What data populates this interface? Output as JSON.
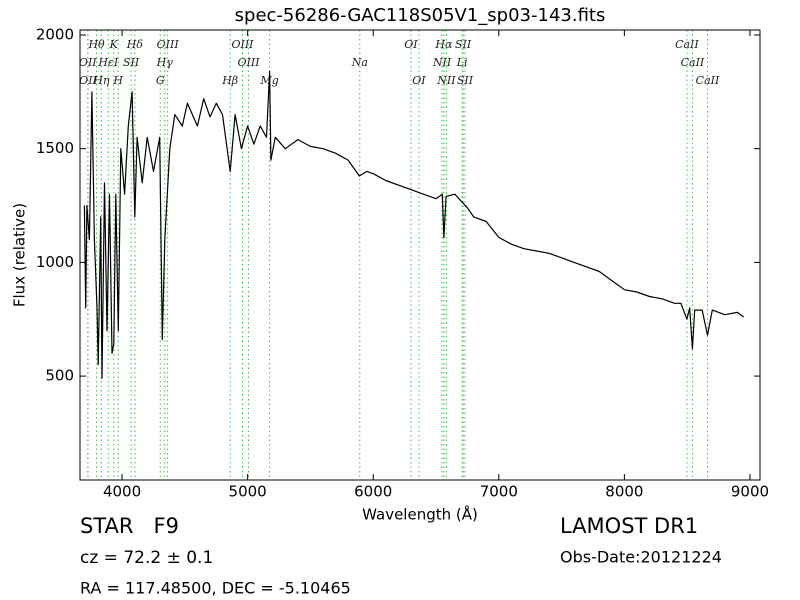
{
  "chart_data": {
    "type": "line",
    "title": "spec-56286-GAC118S05V1_sp03-143.fits",
    "x_label": "Wavelength (Å)",
    "y_label": "Flux (relative)",
    "color": "#000000",
    "line_color": "#44bb44",
    "xlim": [
      3665,
      9080
    ],
    "ylim": [
      43,
      2022
    ],
    "xticks": [
      4000,
      5000,
      6000,
      7000,
      8000,
      9000
    ],
    "yticks": [
      500,
      1000,
      1500,
      2000
    ],
    "x": [
      3700,
      3710,
      3720,
      3740,
      3760,
      3780,
      3800,
      3810,
      3830,
      3840,
      3860,
      3880,
      3900,
      3920,
      3934,
      3950,
      3970,
      3990,
      4020,
      4050,
      4080,
      4101,
      4120,
      4160,
      4200,
      4250,
      4300,
      4320,
      4340,
      4380,
      4420,
      4480,
      4520,
      4560,
      4600,
      4650,
      4700,
      4750,
      4800,
      4861,
      4900,
      4950,
      5000,
      5050,
      5100,
      5150,
      5175,
      5185,
      5220,
      5300,
      5400,
      5500,
      5600,
      5700,
      5800,
      5890,
      5950,
      6000,
      6100,
      6200,
      6300,
      6400,
      6500,
      6550,
      6563,
      6580,
      6650,
      6700,
      6750,
      6800,
      6900,
      7000,
      7100,
      7200,
      7300,
      7400,
      7500,
      7600,
      7700,
      7800,
      7900,
      8000,
      8100,
      8200,
      8300,
      8400,
      8450,
      8498,
      8520,
      8542,
      8560,
      8620,
      8662,
      8700,
      8800,
      8900,
      8950
    ],
    "values": [
      1250,
      800,
      1250,
      1100,
      1750,
      1100,
      800,
      550,
      1200,
      490,
      1350,
      700,
      1300,
      600,
      640,
      1300,
      700,
      1500,
      1300,
      1600,
      1750,
      1200,
      1550,
      1350,
      1550,
      1400,
      1550,
      660,
      1100,
      1500,
      1650,
      1600,
      1700,
      1650,
      1600,
      1720,
      1640,
      1700,
      1650,
      1400,
      1650,
      1500,
      1600,
      1520,
      1600,
      1550,
      1840,
      1450,
      1550,
      1500,
      1540,
      1510,
      1500,
      1480,
      1450,
      1380,
      1400,
      1390,
      1360,
      1340,
      1320,
      1300,
      1280,
      1300,
      1108,
      1290,
      1300,
      1270,
      1240,
      1200,
      1180,
      1110,
      1080,
      1060,
      1050,
      1040,
      1020,
      1000,
      980,
      960,
      920,
      880,
      870,
      850,
      840,
      820,
      820,
      750,
      800,
      620,
      790,
      790,
      680,
      790,
      770,
      780,
      760
    ],
    "line_labels": [
      [
        {
          "label": "Hθ",
          "x": 3797
        },
        {
          "label": "K",
          "x": 3934
        },
        {
          "label": "Hδ",
          "x": 4102
        },
        {
          "label": "OIII",
          "x": 4363
        },
        {
          "label": "OIII",
          "x": 4959
        },
        {
          "label": "OI",
          "x": 6300
        },
        {
          "label": "Hα",
          "x": 6563
        },
        {
          "label": "SII",
          "x": 6716
        },
        {
          "label": "CaII",
          "x": 8498
        }
      ],
      [
        {
          "label": "OII",
          "x": 3727
        },
        {
          "label": "HεI",
          "x": 3890
        },
        {
          "label": "SII",
          "x": 4072
        },
        {
          "label": "Hγ",
          "x": 4340
        },
        {
          "label": "OIII",
          "x": 5007
        },
        {
          "label": "Na",
          "x": 5893
        },
        {
          "label": "NII",
          "x": 6548
        },
        {
          "label": "Li",
          "x": 6708
        },
        {
          "label": "CaII",
          "x": 8542
        }
      ],
      [
        {
          "label": "OII",
          "x": 3729
        },
        {
          "label": "Hη",
          "x": 3835
        },
        {
          "label": "H",
          "x": 3969
        },
        {
          "label": "G",
          "x": 4304
        },
        {
          "label": "Hβ",
          "x": 4861
        },
        {
          "label": "Mg",
          "x": 5175
        },
        {
          "label": "OI",
          "x": 6364
        },
        {
          "label": "NII",
          "x": 6583
        },
        {
          "label": "SII",
          "x": 6731
        },
        {
          "label": "CaII",
          "x": 8662
        }
      ]
    ]
  },
  "info": {
    "class": "STAR   F9",
    "cz": "cz = 72.2 ± 0.1",
    "coords": "RA = 117.48500, DEC = -5.10465",
    "survey": "LAMOST DR1",
    "date": "Obs-Date:20121224"
  }
}
